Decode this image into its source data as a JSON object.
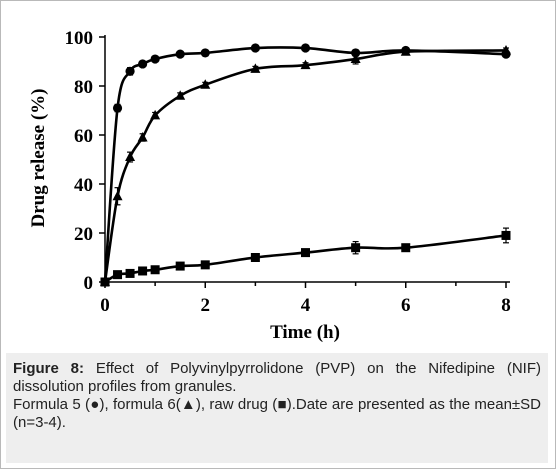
{
  "chart_data": {
    "type": "line",
    "xlabel": "Time (h)",
    "ylabel": "Drug release (%)",
    "xlim": [
      0,
      8
    ],
    "ylim": [
      0,
      100
    ],
    "x_ticks": [
      0,
      2,
      4,
      6,
      8
    ],
    "y_ticks": [
      0,
      20,
      40,
      60,
      80,
      100
    ],
    "grid": false,
    "series": [
      {
        "marker": "circle",
        "x": [
          0,
          0.25,
          0.5,
          0.75,
          1,
          1.5,
          2,
          3,
          4,
          5,
          6,
          8
        ],
        "y": [
          0,
          71,
          86,
          89,
          91,
          93,
          93.5,
          95.5,
          95.5,
          93.5,
          94.5,
          93
        ],
        "err": [
          0,
          1.5,
          1.5,
          1,
          1,
          0.8,
          0.8,
          0.8,
          0.8,
          1.2,
          1,
          1
        ]
      },
      {
        "marker": "triangle",
        "x": [
          0,
          0.25,
          0.5,
          0.75,
          1,
          1.5,
          2,
          3,
          4,
          5,
          6,
          8
        ],
        "y": [
          0,
          35,
          51,
          59,
          68,
          76,
          80.5,
          87,
          88.5,
          91,
          94,
          94.5
        ],
        "err": [
          0,
          3.5,
          2,
          1.5,
          1.2,
          1.2,
          1,
          1,
          1,
          2,
          1.2,
          1
        ]
      },
      {
        "marker": "square",
        "x": [
          0,
          0.25,
          0.5,
          0.75,
          1,
          1.5,
          2,
          3,
          4,
          5,
          6,
          8
        ],
        "y": [
          0,
          3,
          3.5,
          4.5,
          5,
          6.5,
          7,
          10,
          12,
          14,
          14,
          19
        ],
        "err": [
          0,
          0.5,
          0.5,
          0.5,
          0.5,
          0.8,
          0.8,
          1,
          1,
          2.5,
          1,
          3
        ]
      }
    ]
  },
  "caption": {
    "label": "Figure 8:",
    "title_text": " Effect of Polyvinylpyrrolidone (PVP) on the Nifedipine (NIF) dissolution profiles from granules.",
    "legend_text": "Formula 5 (●), formula 6(▲), raw drug (■).Date are presented as the mean±SD (n=3-4)."
  }
}
